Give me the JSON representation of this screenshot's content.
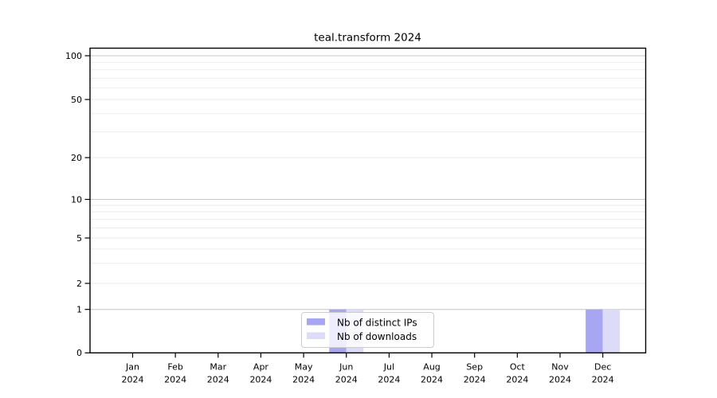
{
  "chart_data": {
    "type": "bar",
    "title": "teal.transform 2024",
    "x": {
      "categories": [
        "Jan",
        "Feb",
        "Mar",
        "Apr",
        "May",
        "Jun",
        "Jul",
        "Aug",
        "Sep",
        "Oct",
        "Nov",
        "Dec"
      ],
      "year_line": "2024"
    },
    "y": {
      "scale": "log above 1, linear 0-1",
      "lim": [
        0,
        110
      ],
      "ticks": [
        0,
        1,
        2,
        5,
        10,
        20,
        50,
        100
      ],
      "tick_labels": [
        "0",
        "1",
        "2",
        "5",
        "10",
        "20",
        "50",
        "100"
      ],
      "major_gridlines": [
        1,
        10,
        100
      ],
      "minor_gridlines": [
        2,
        3,
        4,
        5,
        6,
        7,
        8,
        9,
        20,
        30,
        40,
        50,
        60,
        70,
        80,
        90
      ]
    },
    "series": [
      {
        "name": "Nb of distinct IPs",
        "color": "#a6a6f2",
        "values": [
          0,
          0,
          0,
          0,
          0,
          1,
          0,
          0,
          0,
          0,
          0,
          1
        ]
      },
      {
        "name": "Nb of downloads",
        "color": "#dcdcf8",
        "values": [
          0,
          0,
          0,
          0,
          0,
          1,
          0,
          0,
          0,
          0,
          0,
          1
        ]
      }
    ],
    "legend": {
      "position": "lower center",
      "entries": [
        "Nb of distinct IPs",
        "Nb of downloads"
      ]
    },
    "grid": "horizontal only",
    "colors": {
      "grid_minor": "#ebebeb",
      "grid_major": "#c6c6c6",
      "axis": "#000000",
      "background": "#ffffff",
      "legend_border": "#cccccc"
    }
  }
}
